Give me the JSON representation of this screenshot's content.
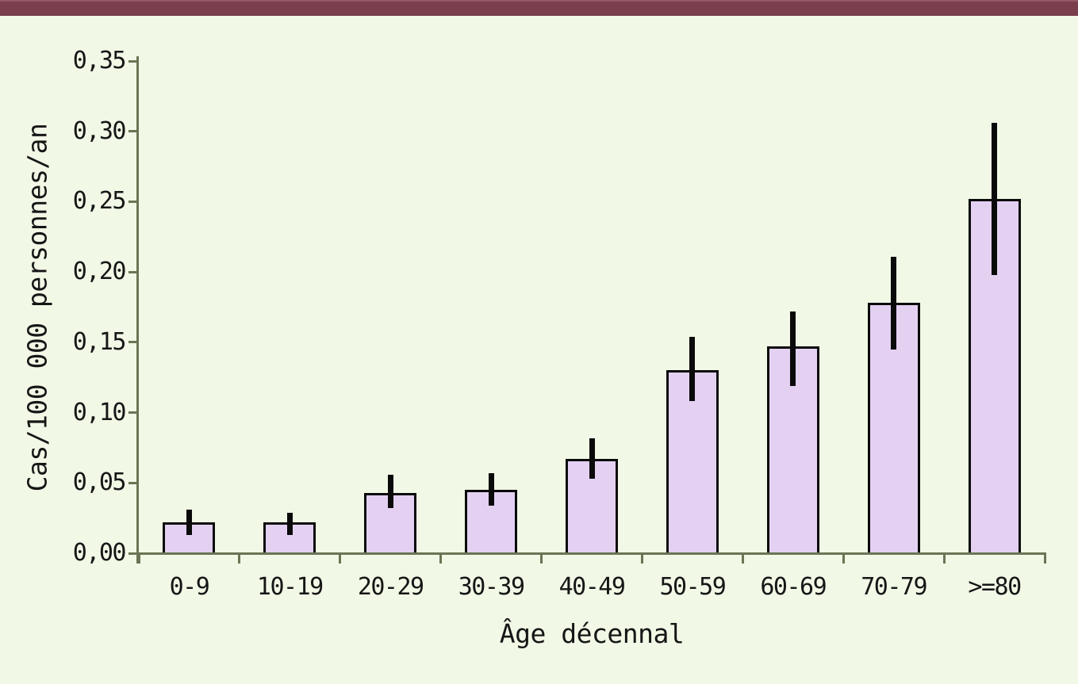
{
  "page": {
    "background_color": "#f1f8e6",
    "top_stripe_color": "#7a3e4c"
  },
  "chart_data": {
    "type": "bar",
    "title": "",
    "xlabel": "Âge décennal",
    "ylabel": "Cas/100 000 personnes/an",
    "categories": [
      "0-9",
      "10-19",
      "20-29",
      "30-39",
      "40-49",
      "50-59",
      "60-69",
      "70-79",
      ">=80"
    ],
    "values": [
      0.022,
      0.022,
      0.043,
      0.045,
      0.067,
      0.13,
      0.147,
      0.178,
      0.252
    ],
    "error_low": [
      0.013,
      0.013,
      0.032,
      0.034,
      0.053,
      0.108,
      0.119,
      0.145,
      0.198
    ],
    "error_high": [
      0.031,
      0.029,
      0.056,
      0.057,
      0.082,
      0.154,
      0.172,
      0.211,
      0.306
    ],
    "ylim": [
      0,
      0.35
    ],
    "ytick_step": 0.05,
    "ytick_labels": [
      "0,00",
      "0,05",
      "0,10",
      "0,15",
      "0,20",
      "0,25",
      "0,30",
      "0,35"
    ],
    "grid": false,
    "legend_position": "none",
    "colors": {
      "bar_fill": "#e4d1f2",
      "bar_border": "#0a0a0a",
      "error_bar": "#0a0a0a",
      "axis": "#6a7555",
      "text": "#161616"
    }
  }
}
